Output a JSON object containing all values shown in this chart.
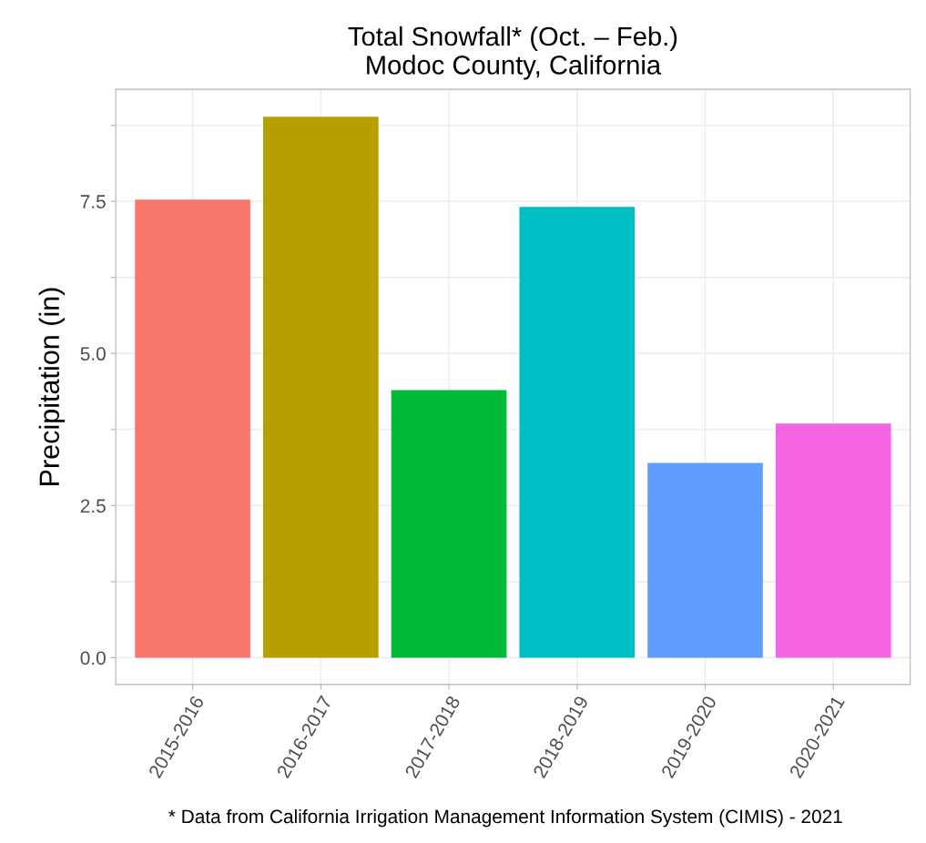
{
  "chart_data": {
    "type": "bar",
    "title": "Total Snowfall* (Oct. – Feb.)\nModoc County, California",
    "ylabel": "Precipitation (in)",
    "categories": [
      "2015-2016",
      "2016-2017",
      "2017-2018",
      "2018-2019",
      "2019-2020",
      "2020-2021"
    ],
    "values": [
      7.53,
      8.89,
      4.4,
      7.41,
      3.2,
      3.85
    ],
    "colors": [
      "#f8766d",
      "#b79f00",
      "#00ba38",
      "#00bfc4",
      "#619cff",
      "#f564e3"
    ],
    "ylim": [
      -0.44,
      9.34
    ],
    "yticks": [
      {
        "value": 0,
        "label": "0.0"
      },
      {
        "value": 1.25,
        "label": null
      },
      {
        "value": 2.5,
        "label": "2.5"
      },
      {
        "value": 3.75,
        "label": null
      },
      {
        "value": 5,
        "label": "5.0"
      },
      {
        "value": 6.25,
        "label": null
      },
      {
        "value": 7.5,
        "label": "7.5"
      },
      {
        "value": 8.75,
        "label": null
      }
    ],
    "grid": true,
    "legend": false,
    "annotations": [
      "* Data from California Irrigation Management Information System (CIMIS) - 2021"
    ]
  }
}
